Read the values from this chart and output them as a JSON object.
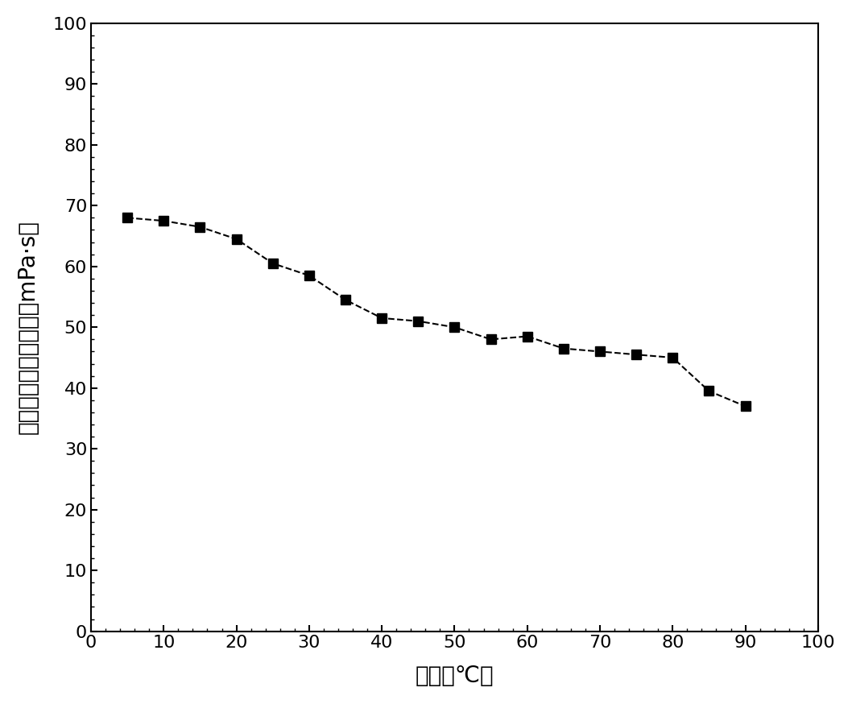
{
  "x": [
    5,
    10,
    15,
    20,
    25,
    30,
    35,
    40,
    45,
    50,
    55,
    60,
    65,
    70,
    75,
    80,
    85,
    90
  ],
  "y": [
    68,
    67.5,
    66.5,
    64.5,
    60.5,
    58.5,
    54.5,
    51.5,
    51,
    50,
    48,
    48.5,
    46.5,
    46,
    45.5,
    45,
    39.5,
    37
  ],
  "xlim": [
    0,
    100
  ],
  "ylim": [
    0,
    100
  ],
  "xticks": [
    0,
    10,
    20,
    30,
    40,
    50,
    60,
    70,
    80,
    90,
    100
  ],
  "yticks": [
    0,
    10,
    20,
    30,
    40,
    50,
    60,
    70,
    80,
    90,
    100
  ],
  "xlabel": "温度（℃）",
  "ylabel": "压裂液体系有效粘度（mPa·s）",
  "line_color": "#000000",
  "marker": "s",
  "marker_size": 8,
  "line_width": 1.5,
  "background_color": "#ffffff"
}
